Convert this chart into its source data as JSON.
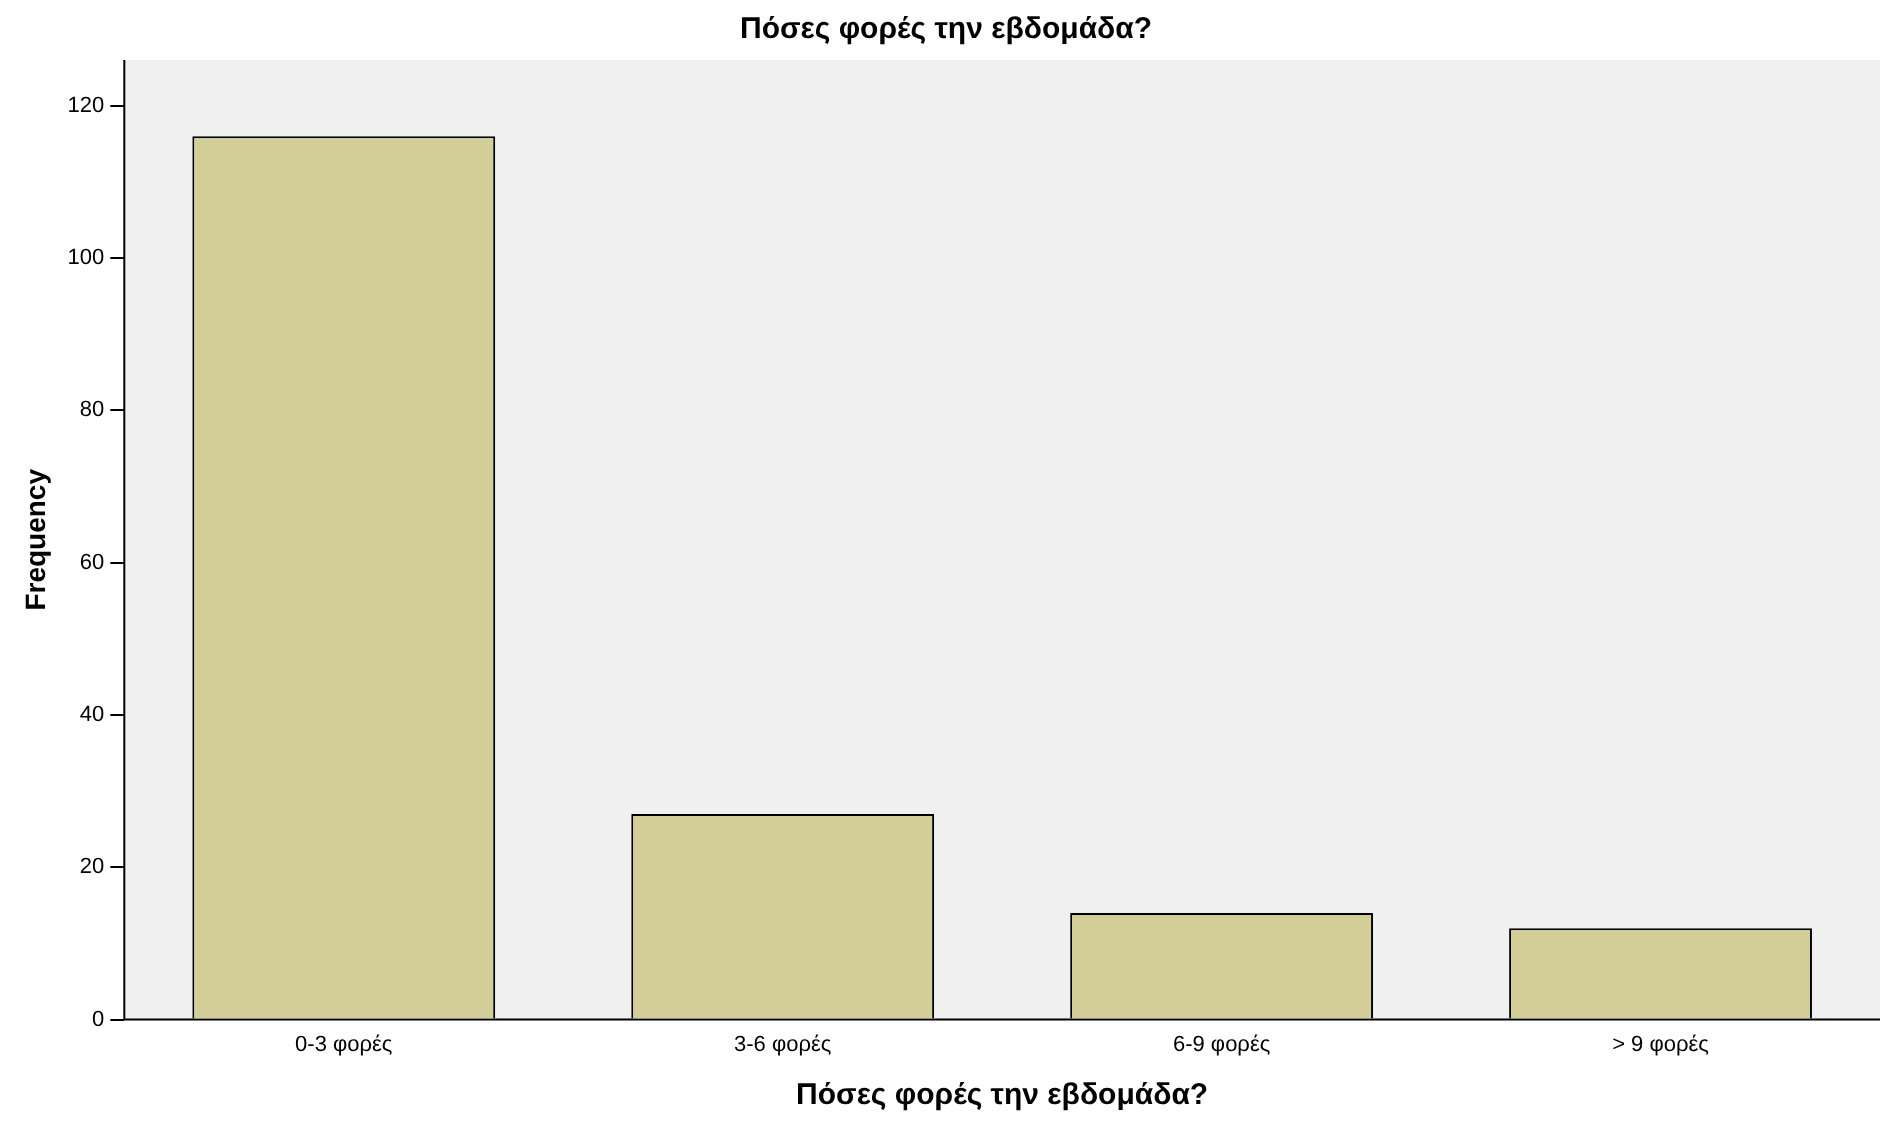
{
  "chart_data": {
    "type": "bar",
    "title": "Πόσες φορές την εβδομάδα?",
    "xlabel": "Πόσες φορές την εβδομάδα?",
    "ylabel": "Frequency",
    "categories": [
      "0-3 φορές",
      "3-6 φορές",
      "6-9 φορές",
      "> 9 φορές"
    ],
    "values": [
      116,
      27,
      14,
      12
    ],
    "color": "#d3ce97",
    "ylim": [
      0,
      126
    ],
    "yticks": [
      0,
      20,
      40,
      60,
      80,
      100,
      120
    ],
    "grid": false,
    "legend": false
  }
}
